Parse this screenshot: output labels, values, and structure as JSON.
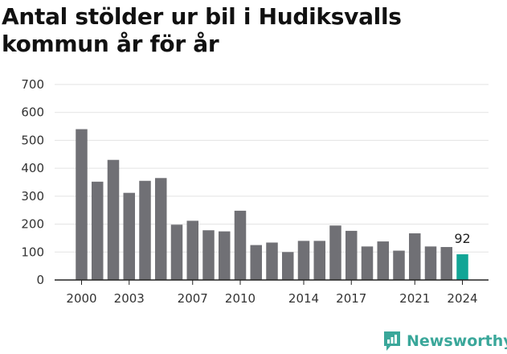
{
  "chart_data": {
    "type": "bar",
    "title": "Antal stölder ur bil i Hudiksvalls kommun år för år",
    "xlabel": "",
    "ylabel": "",
    "x": [
      2000,
      2001,
      2002,
      2003,
      2004,
      2005,
      2006,
      2007,
      2008,
      2009,
      2010,
      2011,
      2012,
      2013,
      2014,
      2015,
      2016,
      2017,
      2018,
      2019,
      2020,
      2021,
      2022,
      2023,
      2024
    ],
    "values": [
      540,
      352,
      430,
      312,
      355,
      365,
      198,
      212,
      178,
      174,
      248,
      125,
      134,
      100,
      140,
      140,
      195,
      176,
      120,
      138,
      105,
      167,
      120,
      118,
      92
    ],
    "ylim": [
      0,
      700
    ],
    "yticks": [
      "0",
      "100",
      "200",
      "300",
      "400",
      "500",
      "600",
      "700"
    ],
    "xtick_labels": [
      "2000",
      "2003",
      "2007",
      "2010",
      "2014",
      "2017",
      "2021",
      "2024"
    ],
    "highlight_label": "92",
    "grid": true,
    "colors": {
      "bar": "#707075",
      "highlight": "#12a596",
      "grid": "#e3e3e3",
      "axis": "#222222"
    }
  },
  "brand": {
    "name": "Newsworthy",
    "icon": "newsworthy-logo-icon",
    "color": "#3aa79a"
  }
}
